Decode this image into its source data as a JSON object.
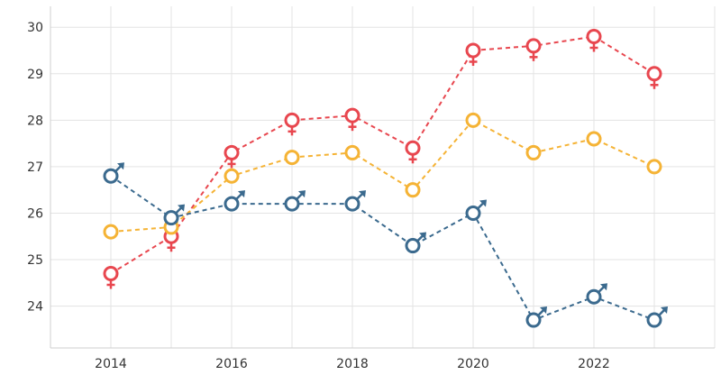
{
  "chart_data": {
    "type": "line",
    "title": "",
    "xlabel": "",
    "ylabel": "",
    "x": [
      2014,
      2015,
      2016,
      2017,
      2018,
      2019,
      2020,
      2021,
      2022,
      2023
    ],
    "x_ticks": [
      "2014",
      "2016",
      "2018",
      "2020",
      "2022"
    ],
    "y_ticks": [
      "24",
      "25",
      "26",
      "27",
      "28",
      "29",
      "30"
    ],
    "xlim": [
      2013,
      2024
    ],
    "ylim": [
      23.1,
      30.45
    ],
    "grid": true,
    "legend": "none",
    "series": [
      {
        "key": "female",
        "marker": "female-symbol",
        "color": "#e8474f",
        "values": [
          24.7,
          25.5,
          27.3,
          28.0,
          28.1,
          27.4,
          29.5,
          29.6,
          29.8,
          29.0
        ]
      },
      {
        "key": "total",
        "marker": "circle",
        "color": "#f5b335",
        "values": [
          25.6,
          25.7,
          26.8,
          27.2,
          27.3,
          26.5,
          28.0,
          27.3,
          27.6,
          27.0
        ]
      },
      {
        "key": "male",
        "marker": "male-symbol",
        "color": "#3b6a8e",
        "values": [
          26.8,
          25.9,
          26.2,
          26.2,
          26.2,
          25.3,
          26.0,
          23.7,
          24.2,
          23.7
        ]
      }
    ]
  }
}
